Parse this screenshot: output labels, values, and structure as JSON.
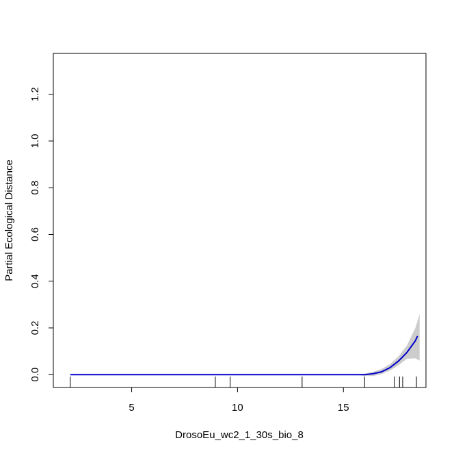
{
  "chart_data": {
    "type": "line",
    "title": "",
    "xlabel": "DrosoEu_wc2_1_30s_bio_8",
    "ylabel": "Partial Ecological Distance",
    "xlim": [
      1.3,
      18.9
    ],
    "ylim": [
      -0.055,
      1.375
    ],
    "x_ticks": [
      5,
      10,
      15
    ],
    "x_tick_labels": [
      "5",
      "10",
      "15"
    ],
    "y_ticks": [
      0.0,
      0.2,
      0.4,
      0.6,
      0.8,
      1.0,
      1.2
    ],
    "y_tick_labels": [
      "0.0",
      "0.2",
      "0.4",
      "0.6",
      "0.8",
      "1.0",
      "1.2"
    ],
    "grid": false,
    "colors": {
      "line": "#0000cc",
      "band": "#cccccc",
      "axis": "#000000"
    },
    "series": [
      {
        "x": [
          2.1,
          4,
          6,
          8,
          10,
          12,
          14,
          15.5,
          16.0,
          16.4,
          16.8,
          17.2,
          17.6,
          18.0,
          18.4,
          18.5
        ],
        "values": [
          0,
          0,
          0,
          0,
          0,
          0,
          0,
          0,
          0.0,
          0.004,
          0.012,
          0.03,
          0.058,
          0.095,
          0.145,
          0.165
        ]
      }
    ],
    "confidence_band": {
      "x": [
        2.1,
        15.5,
        16.0,
        16.4,
        16.8,
        17.2,
        17.6,
        18.0,
        18.4,
        18.6
      ],
      "lower": [
        0,
        0,
        -0.005,
        -0.006,
        0.002,
        0.018,
        0.04,
        0.068,
        0.07,
        0.06
      ],
      "upper": [
        0,
        0,
        0.004,
        0.012,
        0.024,
        0.045,
        0.078,
        0.125,
        0.2,
        0.26
      ]
    },
    "rug": [
      2.1,
      8.95,
      9.65,
      13.05,
      16.0,
      17.4,
      17.65,
      17.8,
      18.45
    ]
  }
}
